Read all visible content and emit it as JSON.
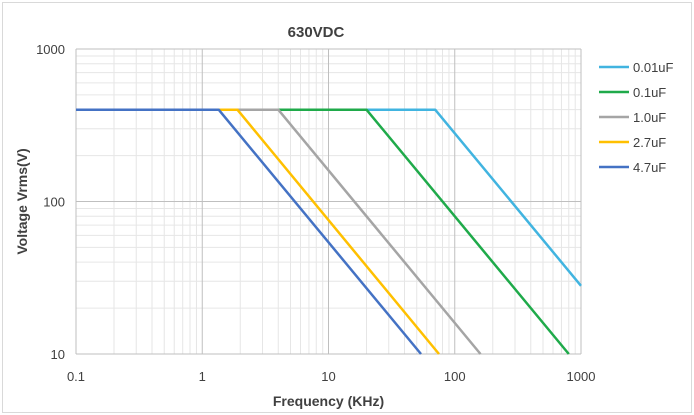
{
  "chart_data": {
    "type": "line",
    "title": "630VDC",
    "xlabel": "Frequency (KHz)",
    "ylabel": "Voltage Vrms(V)",
    "x_scale": "log",
    "y_scale": "log",
    "xlim": [
      0.1,
      1000
    ],
    "ylim": [
      10,
      1000
    ],
    "x_ticks": [
      "0.1",
      "1",
      "10",
      "100",
      "1000"
    ],
    "y_ticks": [
      "10",
      "100",
      "1000"
    ],
    "grid": true,
    "legend_position": "right",
    "series": [
      {
        "name": "0.01uF",
        "color": "#41b4e0",
        "x": [
          0.1,
          70,
          1000
        ],
        "y": [
          400,
          400,
          28
        ]
      },
      {
        "name": "0.1uF",
        "color": "#1faa4a",
        "x": [
          0.1,
          20,
          800
        ],
        "y": [
          400,
          400,
          10
        ]
      },
      {
        "name": "1.0uF",
        "color": "#a5a5a5",
        "x": [
          0.1,
          4,
          160
        ],
        "y": [
          400,
          400,
          10
        ]
      },
      {
        "name": "2.7uF",
        "color": "#ffc000",
        "x": [
          0.1,
          1.9,
          75
        ],
        "y": [
          400,
          400,
          10
        ]
      },
      {
        "name": "4.7uF",
        "color": "#4472c4",
        "x": [
          0.1,
          1.35,
          54
        ],
        "y": [
          400,
          400,
          10
        ]
      }
    ]
  }
}
